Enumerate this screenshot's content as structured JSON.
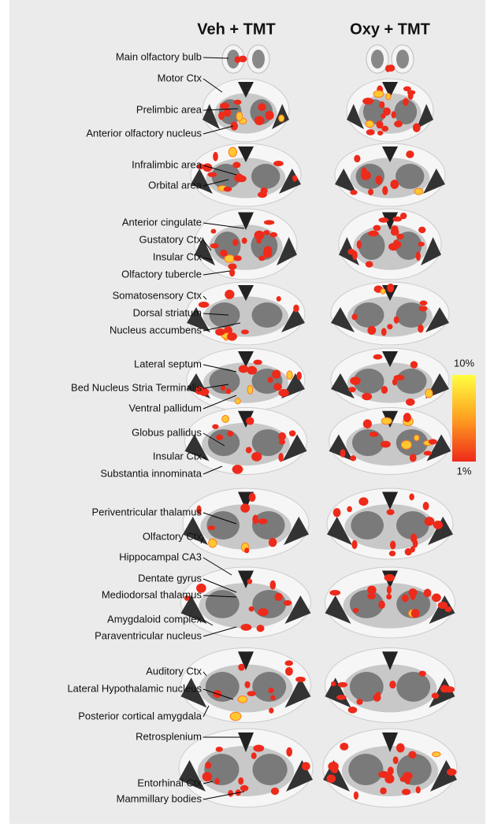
{
  "header": {
    "columns": [
      "Veh + TMT",
      "Oxy + TMT"
    ]
  },
  "labels": [
    "Main olfactory bulb",
    "Motor Ctx",
    "Prelimbic area",
    "Anterior olfactory nucleus",
    "Infralimbic area",
    "Orbital area",
    "Anterior cingulate",
    "Gustatory Ctx",
    "Insular Ctx",
    "Olfactory tubercle",
    "Somatosensory Ctx",
    "Dorsal striatum",
    "Nucleus accumbens",
    "Lateral septum",
    "Bed Nucleus Stria Terminalis",
    "Ventral pallidum",
    "Globus pallidus",
    "Insular Ctx",
    "Substantia innominata",
    "Periventricular thalamus",
    "Olfactory Ctx",
    "Hippocampal CA3",
    "Dentate gyrus",
    "Mediodorsal thalamus",
    "Amygdaloid complex",
    "Paraventricular nucleus",
    "Auditory Ctx",
    "Lateral Hypothalamic nucleus",
    "Posterior cortical amygdala",
    "Retrosplenium",
    "Entorhinal Ctx",
    "Mammillary bodies"
  ],
  "colorbar": {
    "max_label": "10%",
    "min_label": "1%"
  }
}
